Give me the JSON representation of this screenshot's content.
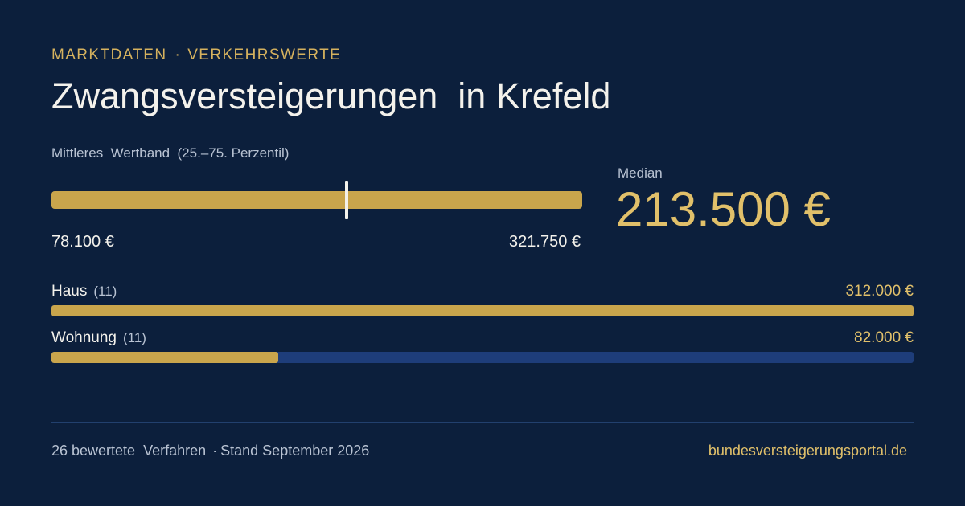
{
  "eyebrow": {
    "part1": "MARKTDATEN",
    "separator": "·",
    "part2": "VERKEHRSWERTE"
  },
  "title": "Zwangsversteigerungen  in Krefeld",
  "band": {
    "label": "Mittleres  Wertband  (25.–75. Perzentil)",
    "min_label": "78.100 €",
    "max_label": "321.750 €",
    "min_value": 78100,
    "max_value": 321750,
    "median_value": 213500
  },
  "median": {
    "label": "Median",
    "value_label": "213.500 €"
  },
  "categories": [
    {
      "name": "Haus",
      "count": "(11)",
      "value_label": "312.000 €",
      "value": 312000
    },
    {
      "name": "Wohnung",
      "count": "(11)",
      "value_label": "82.000 €",
      "value": 82000
    }
  ],
  "footer": {
    "cases": "26 bewertete  Verfahren",
    "separator": "·",
    "stand": "Stand September 2026",
    "site": "bundesversteigerungsportal.de"
  },
  "colors": {
    "background": "#0c1f3c",
    "accent": "#c9a54c",
    "accent_text": "#e1c06a",
    "track": "#1e3d7a"
  }
}
